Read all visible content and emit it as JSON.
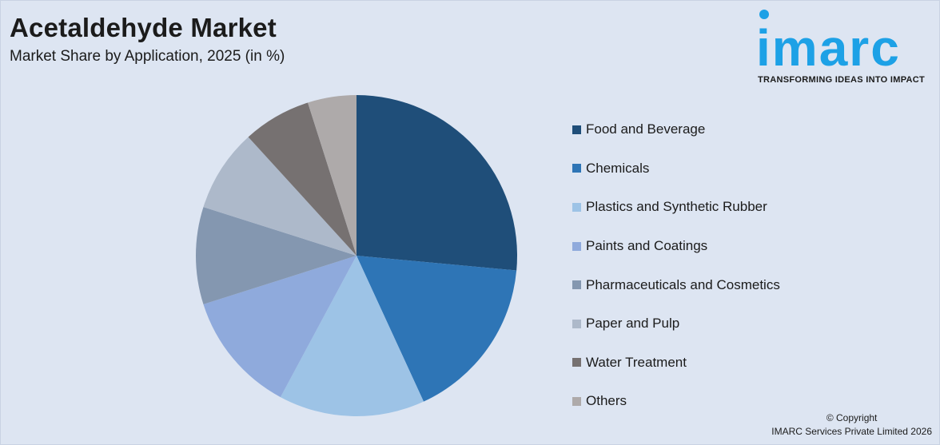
{
  "header": {
    "title": "Acetaldehyde Market",
    "subtitle": "Market Share by Application, 2025 (in %)"
  },
  "logo": {
    "word": "imarc",
    "tagline": "TRANSFORMING IDEAS INTO IMPACT",
    "color": "#1da1e6"
  },
  "copyright": {
    "line1": "© Copyright",
    "line2": "IMARC Services Private Limited 2026"
  },
  "chart_data": {
    "type": "pie",
    "title": "Acetaldehyde Market",
    "subtitle": "Market Share by Application, 2025 (in %)",
    "legend_position": "right",
    "start_angle_deg": 0,
    "direction": "clockwise",
    "slices": [
      {
        "label": "Food and Beverage",
        "value": 27,
        "color": "#1f4e79"
      },
      {
        "label": "Chemicals",
        "value": 17,
        "color": "#2e75b6"
      },
      {
        "label": "Plastics and Synthetic Rubber",
        "value": 15,
        "color": "#9dc3e6"
      },
      {
        "label": "Paints and Coatings",
        "value": 12.5,
        "color": "#8faadc"
      },
      {
        "label": "Pharmaceuticals and Cosmetics",
        "value": 10,
        "color": "#8497b0"
      },
      {
        "label": "Paper and Pulp",
        "value": 8.5,
        "color": "#adb9ca"
      },
      {
        "label": "Water Treatment",
        "value": 7,
        "color": "#767171"
      },
      {
        "label": "Others",
        "value": 5,
        "color": "#aeaaaa"
      }
    ]
  }
}
